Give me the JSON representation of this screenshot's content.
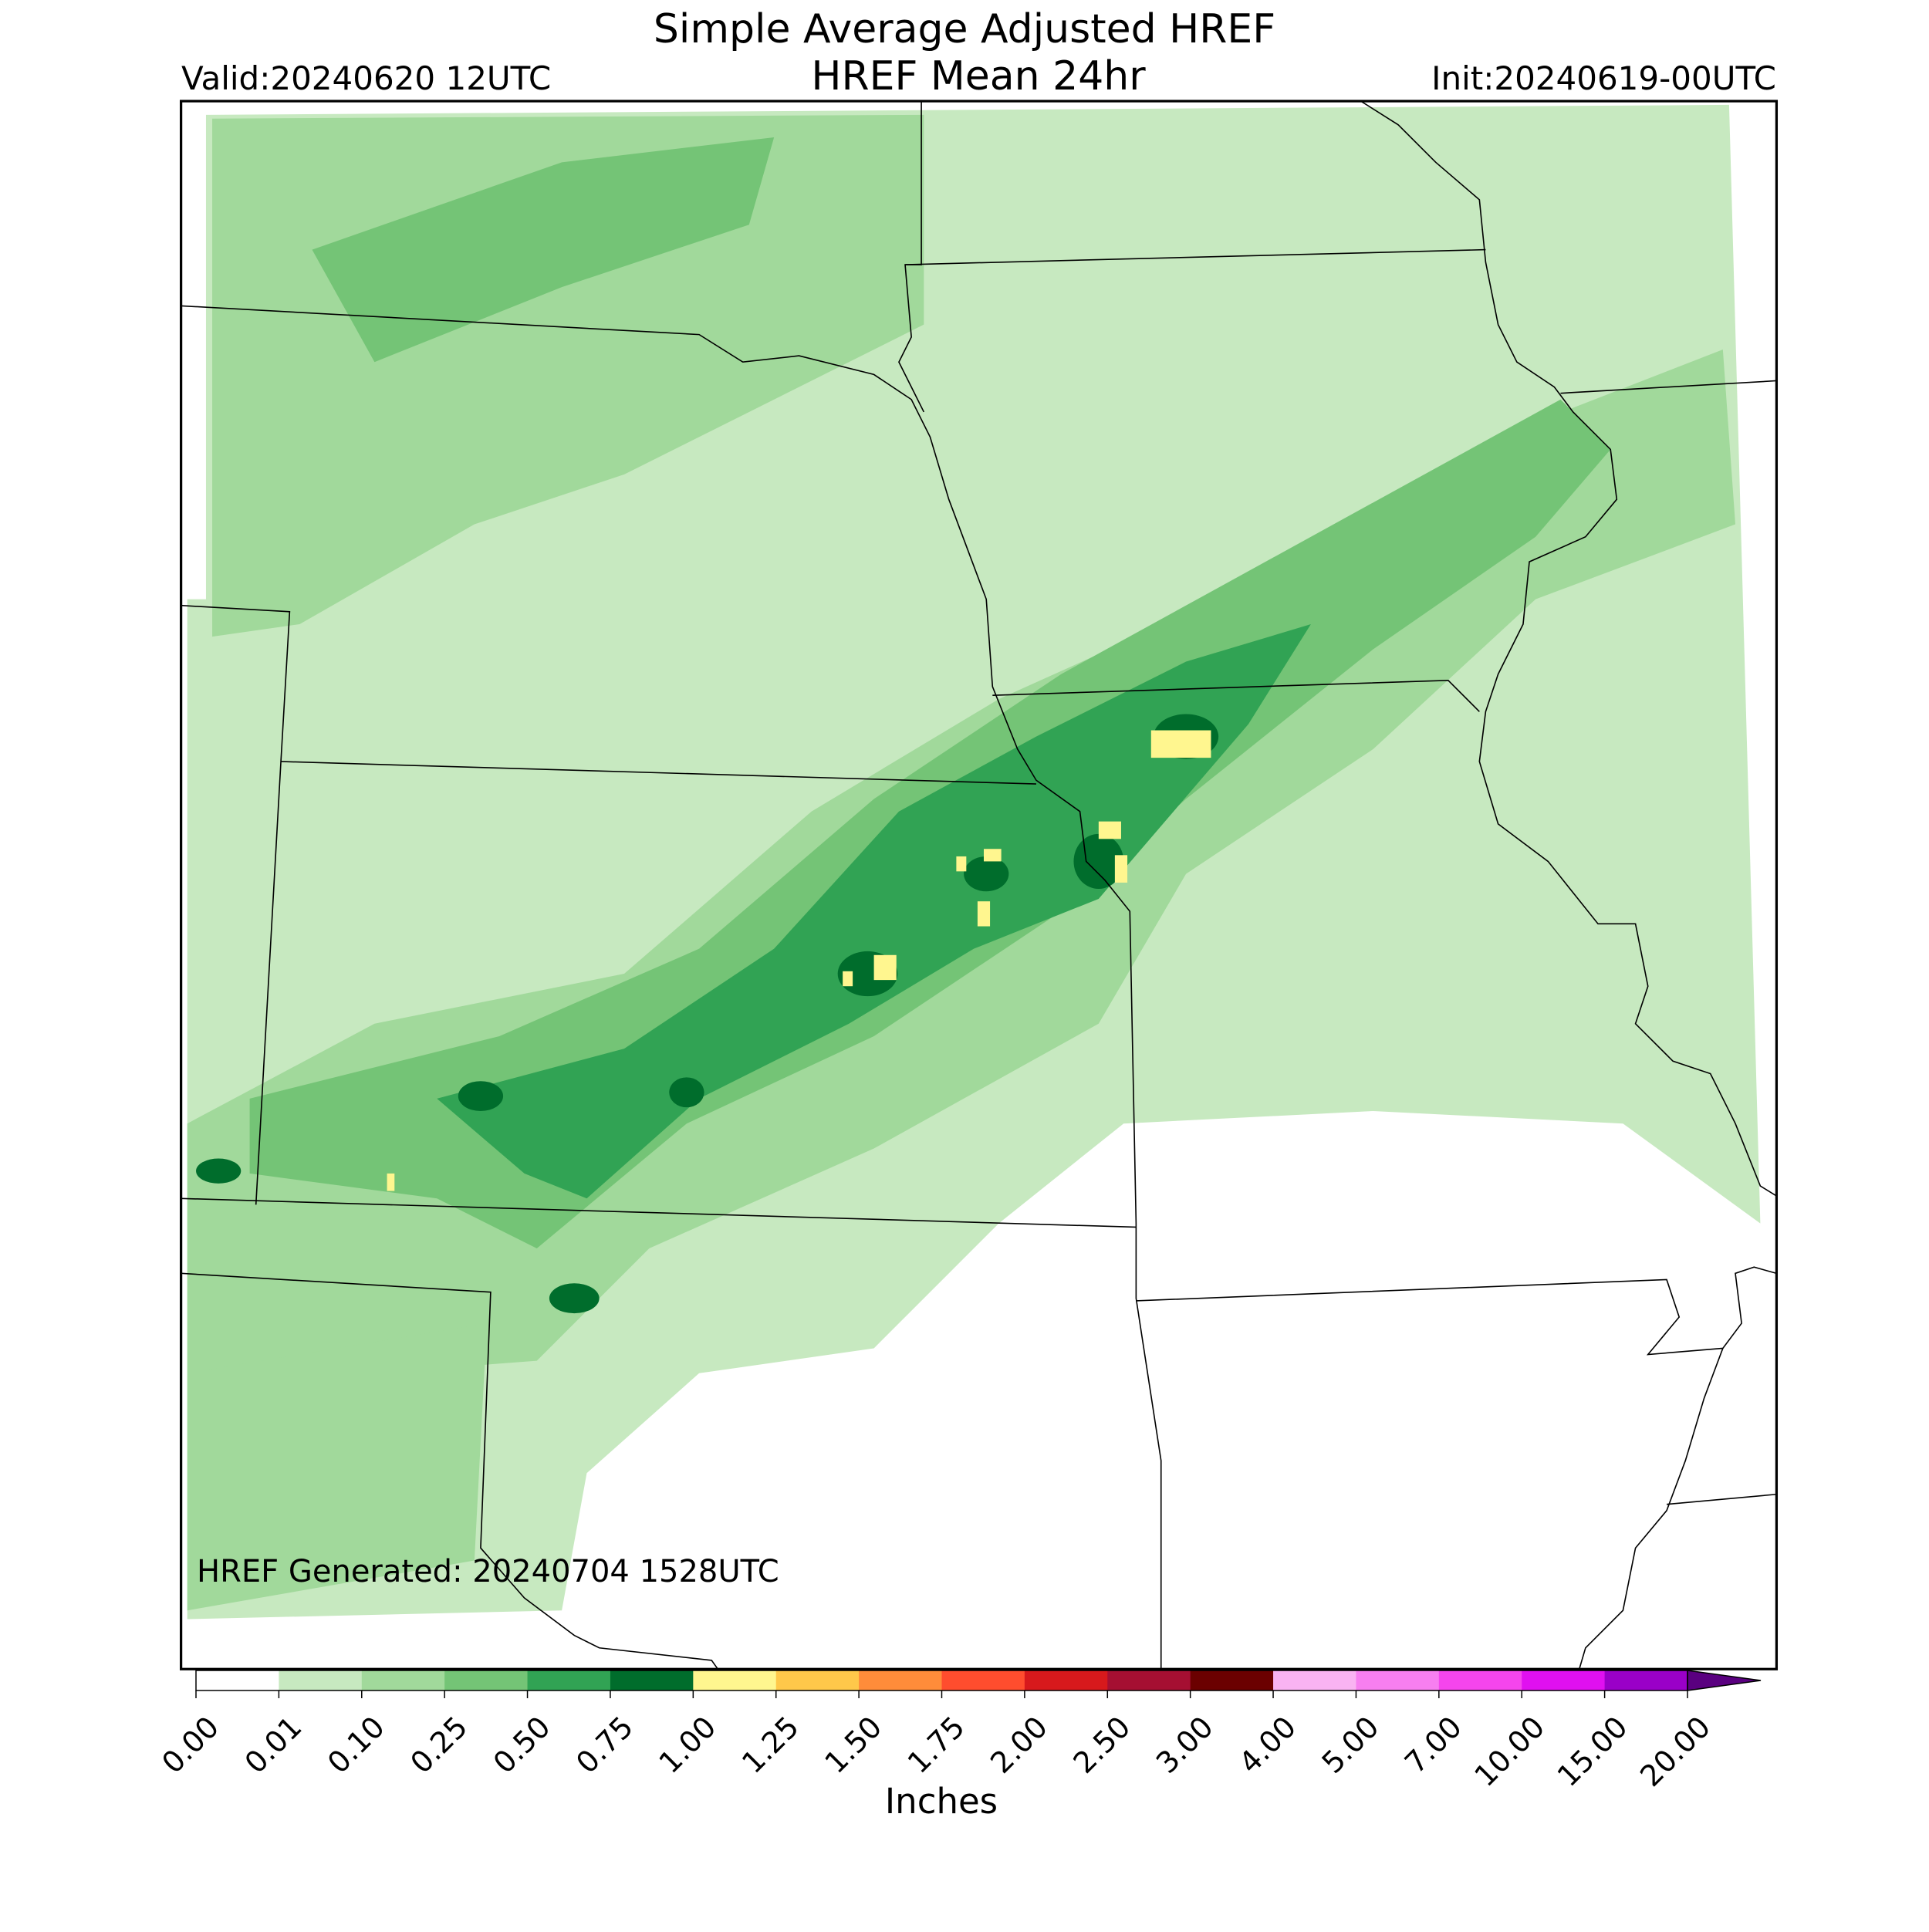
{
  "title": [
    "Simple Average Adjusted HREF",
    "HREF Mean 24hr"
  ],
  "valid": "Valid:20240620 12UTC",
  "init": "Init:20240619-00UTC",
  "generated": "HREF Generated: 20240704 1528UTC",
  "colorbar": {
    "label": "Inches",
    "ticks": [
      {
        "value": 0,
        "label": "0.00"
      },
      {
        "value": 0.01,
        "label": "0.01"
      },
      {
        "value": 0.1,
        "label": "0.10"
      },
      {
        "value": 0.25,
        "label": "0.25"
      },
      {
        "value": 0.5,
        "label": "0.50"
      },
      {
        "value": 0.75,
        "label": "0.75"
      },
      {
        "value": 1,
        "label": "1.00"
      },
      {
        "value": 1.25,
        "label": "1.25"
      },
      {
        "value": 1.5,
        "label": "1.50"
      },
      {
        "value": 1.75,
        "label": "1.75"
      },
      {
        "value": 2,
        "label": "2.00"
      },
      {
        "value": 2.5,
        "label": "2.50"
      },
      {
        "value": 3,
        "label": "3.00"
      },
      {
        "value": 4,
        "label": "4.00"
      },
      {
        "value": 5,
        "label": "5.00"
      },
      {
        "value": 7,
        "label": "7.00"
      },
      {
        "value": 10,
        "label": "10.00"
      },
      {
        "value": 15,
        "label": "15.00"
      },
      {
        "value": 20,
        "label": "20.00"
      }
    ],
    "colors": [
      "#ffffff",
      "#c7e9c0",
      "#a1d99b",
      "#74c476",
      "#31a354",
      "#006d2c",
      "#fff68f",
      "#ffc84a",
      "#ff8c3a",
      "#ff4d2e",
      "#d7191c",
      "#a50f32",
      "#6b0000",
      "#f9b3f2",
      "#f77ff0",
      "#f545ed",
      "#e010f0",
      "#9a00c8"
    ],
    "extend_color": "#5a0080"
  }
}
